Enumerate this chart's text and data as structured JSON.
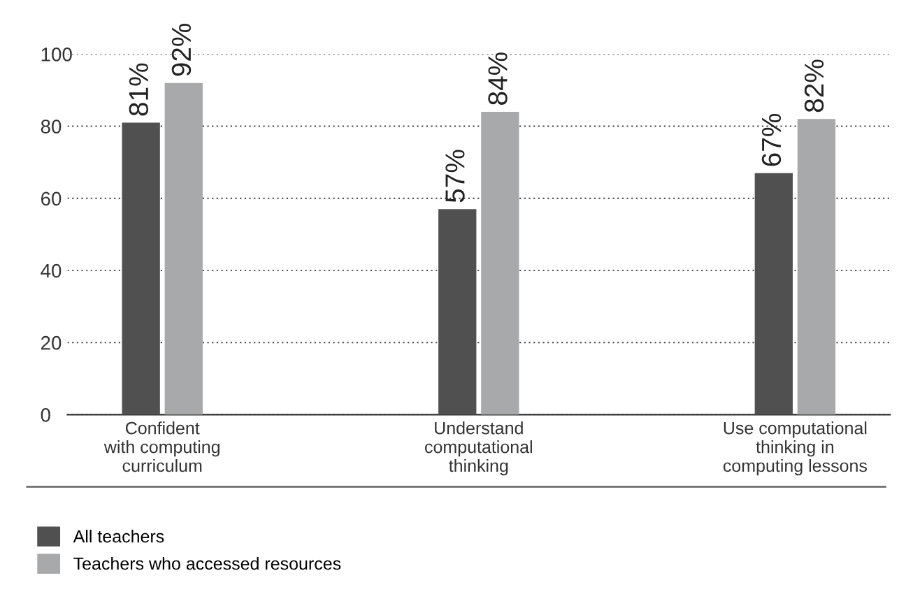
{
  "chart_data": {
    "type": "bar",
    "categories": [
      "Confident\nwith computing\ncurriculum",
      "Understand\ncomputational\nthinking",
      "Use computational\nthinking in\ncomputing lessons"
    ],
    "series": [
      {
        "name": "All teachers",
        "color": "#505050",
        "values": [
          81,
          57,
          67
        ],
        "value_labels": [
          "81%",
          "57%",
          "67%"
        ]
      },
      {
        "name": "Teachers who accessed resources",
        "color": "#a8a9ab",
        "values": [
          92,
          84,
          82
        ],
        "value_labels": [
          "92%",
          "84%",
          "82%"
        ]
      }
    ],
    "ylim": [
      0,
      100
    ],
    "yticks": [
      0,
      20,
      40,
      60,
      80,
      100
    ],
    "grid": "y",
    "legend": "bottom"
  }
}
